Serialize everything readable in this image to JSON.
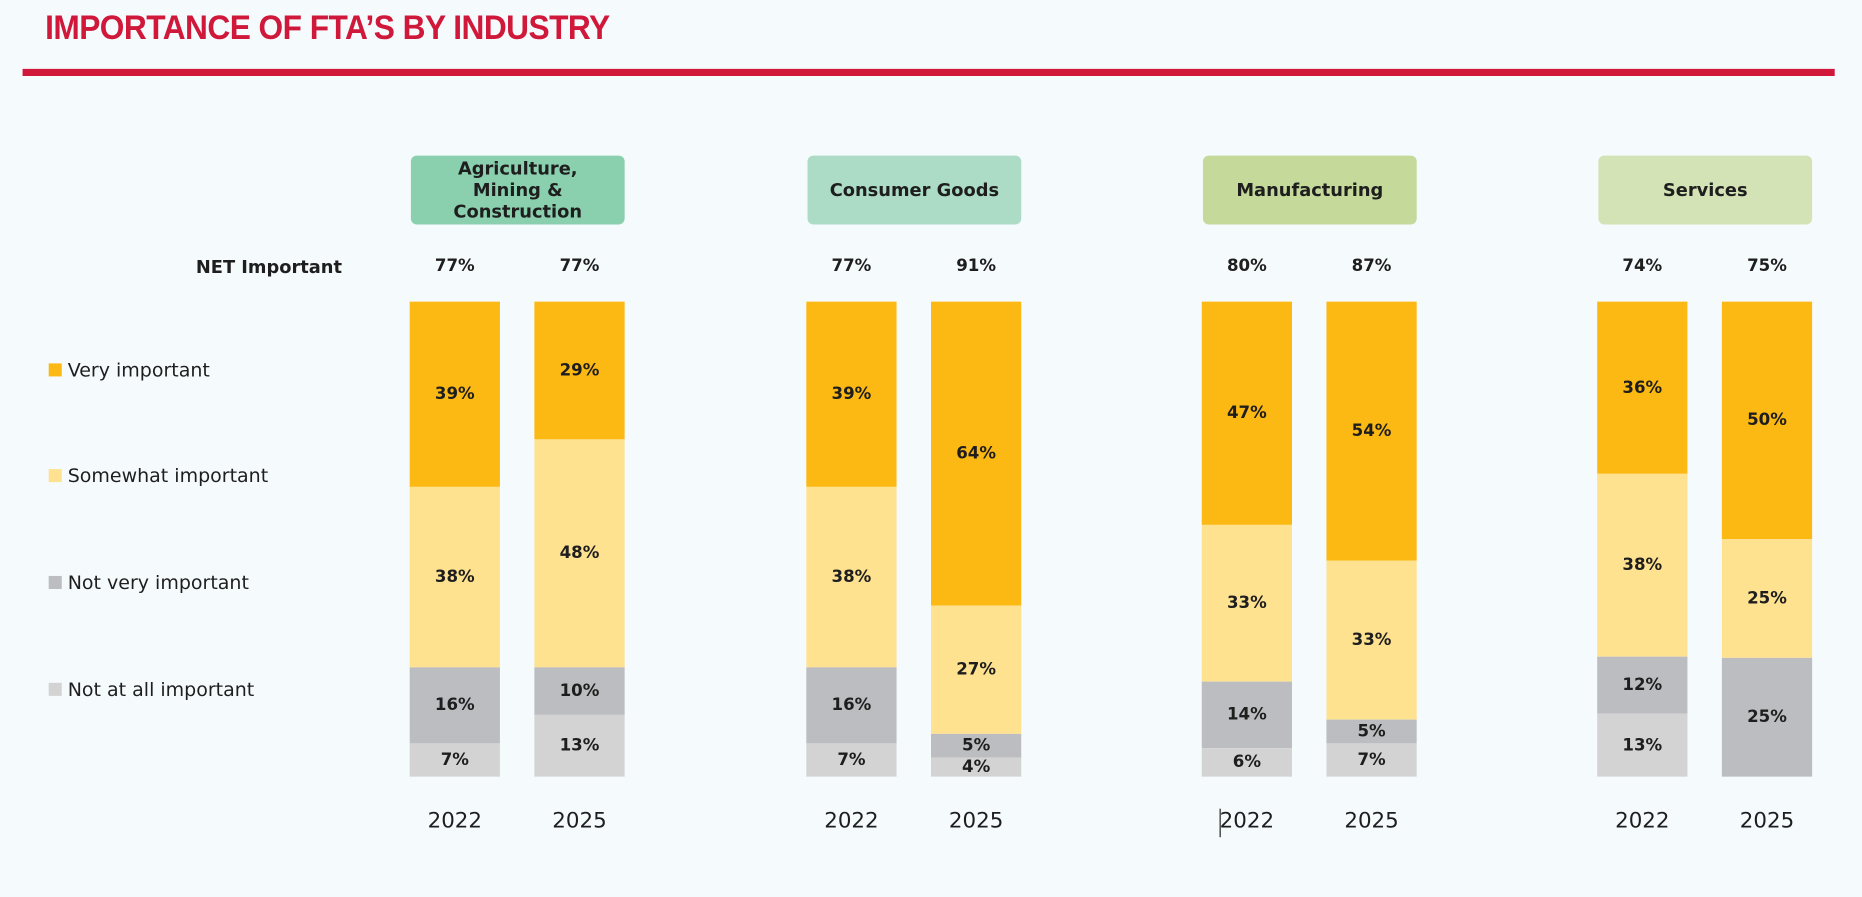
{
  "title": "IMPORTANCE OF FTA’S BY INDUSTRY",
  "colors": {
    "accent": "#D0183A",
    "very": "#FDB913",
    "somewhat": "#FFE290",
    "not_very": "#BCBDC0",
    "not_at_all": "#D3D3D3"
  },
  "chart_data": {
    "type": "bar",
    "stacked": true,
    "row_label": "NET Important",
    "legend": [
      {
        "key": "very",
        "name": "Very important"
      },
      {
        "key": "somewhat",
        "name": "Somewhat important"
      },
      {
        "key": "not_very",
        "name": "Not very important"
      },
      {
        "key": "not_at_all",
        "name": "Not at all important"
      }
    ],
    "groups": [
      {
        "name": "Agriculture, Mining & Construction",
        "color": "#8ACFAE",
        "bars": [
          {
            "year": "2022",
            "net": "77%",
            "very": 39,
            "somewhat": 38,
            "not_very": 16,
            "not_at_all": 7
          },
          {
            "year": "2025",
            "net": "77%",
            "very": 29,
            "somewhat": 48,
            "not_very": 10,
            "not_at_all": 13
          }
        ]
      },
      {
        "name": "Consumer Goods",
        "color": "#ADDCC6",
        "bars": [
          {
            "year": "2022",
            "net": "77%",
            "very": 39,
            "somewhat": 38,
            "not_very": 16,
            "not_at_all": 7
          },
          {
            "year": "2025",
            "net": "91%",
            "very": 64,
            "somewhat": 27,
            "not_very": 5,
            "not_at_all": 4
          }
        ]
      },
      {
        "name": "Manufacturing",
        "color": "#C4D99A",
        "bars": [
          {
            "year": "2022",
            "net": "80%",
            "very": 47,
            "somewhat": 33,
            "not_very": 14,
            "not_at_all": 6
          },
          {
            "year": "2025",
            "net": "87%",
            "very": 54,
            "somewhat": 33,
            "not_very": 5,
            "not_at_all": 7
          }
        ]
      },
      {
        "name": "Services",
        "color": "#D4E3B5",
        "bars": [
          {
            "year": "2022",
            "net": "74%",
            "very": 36,
            "somewhat": 38,
            "not_very": 12,
            "not_at_all": 13
          },
          {
            "year": "2025",
            "net": "75%",
            "very": 50,
            "somewhat": 25,
            "not_very": 25,
            "not_at_all": 0
          }
        ]
      }
    ]
  }
}
